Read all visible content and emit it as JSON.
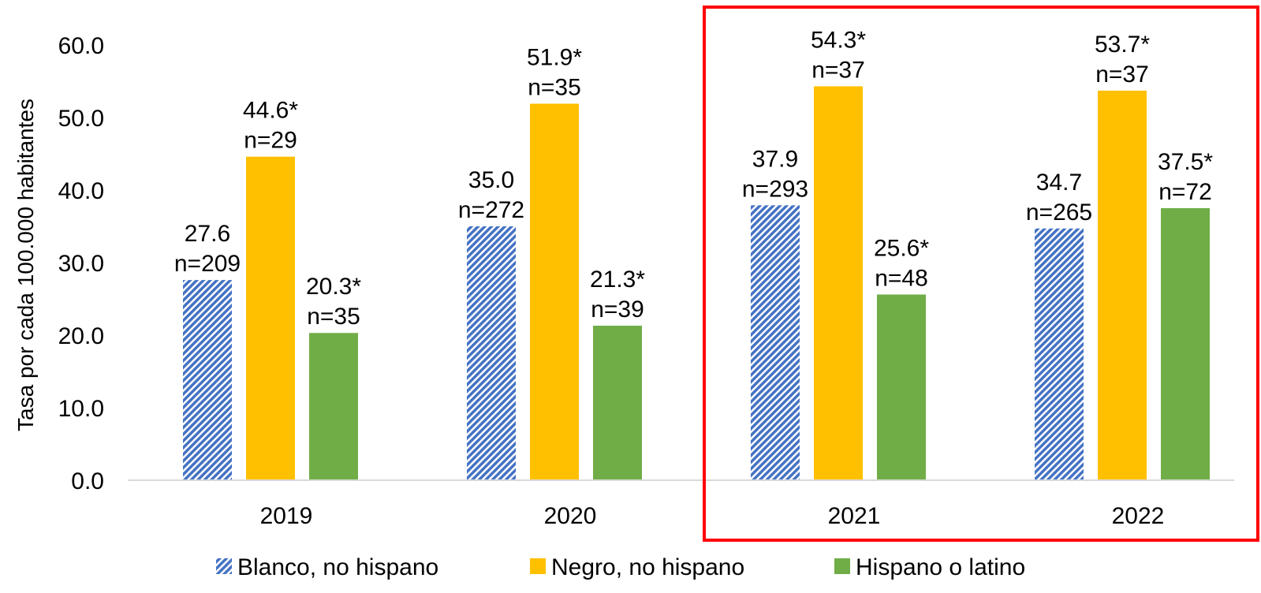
{
  "chart_data": {
    "type": "bar",
    "ylabel": "Tasa por cada 100.000 habitantes",
    "ylim": [
      0,
      60
    ],
    "yticks": [
      "0.0",
      "10.0",
      "20.0",
      "30.0",
      "40.0",
      "50.0",
      "60.0"
    ],
    "categories": [
      "2019",
      "2020",
      "2021",
      "2022"
    ],
    "series": [
      {
        "name": "Blanco, no hispano",
        "values": [
          27.6,
          35.0,
          37.9,
          34.7
        ],
        "labels": [
          [
            "27.6",
            "n=209"
          ],
          [
            "35.0",
            "n=272"
          ],
          [
            "37.9",
            "n=293"
          ],
          [
            "34.7",
            "n=265"
          ]
        ],
        "color": "#4472C4",
        "pattern": "diagonal-hatch"
      },
      {
        "name": "Negro, no hispano",
        "values": [
          44.6,
          51.9,
          54.3,
          53.7
        ],
        "labels": [
          [
            "44.6*",
            "n=29"
          ],
          [
            "51.9*",
            "n=35"
          ],
          [
            "54.3*",
            "n=37"
          ],
          [
            "53.7*",
            "n=37"
          ]
        ],
        "color": "#FFC000",
        "pattern": "solid"
      },
      {
        "name": "Hispano o latino",
        "values": [
          20.3,
          21.3,
          25.6,
          37.5
        ],
        "labels": [
          [
            "20.3*",
            "n=35"
          ],
          [
            "21.3*",
            "n=39"
          ],
          [
            "25.6*",
            "n=48"
          ],
          [
            "37.5*",
            "n=72"
          ]
        ],
        "color": "#70AD47",
        "pattern": "solid"
      }
    ],
    "grid": false,
    "legend": "bottom",
    "highlight": {
      "categories": [
        "2021",
        "2022"
      ],
      "color": "#FF0000"
    }
  }
}
